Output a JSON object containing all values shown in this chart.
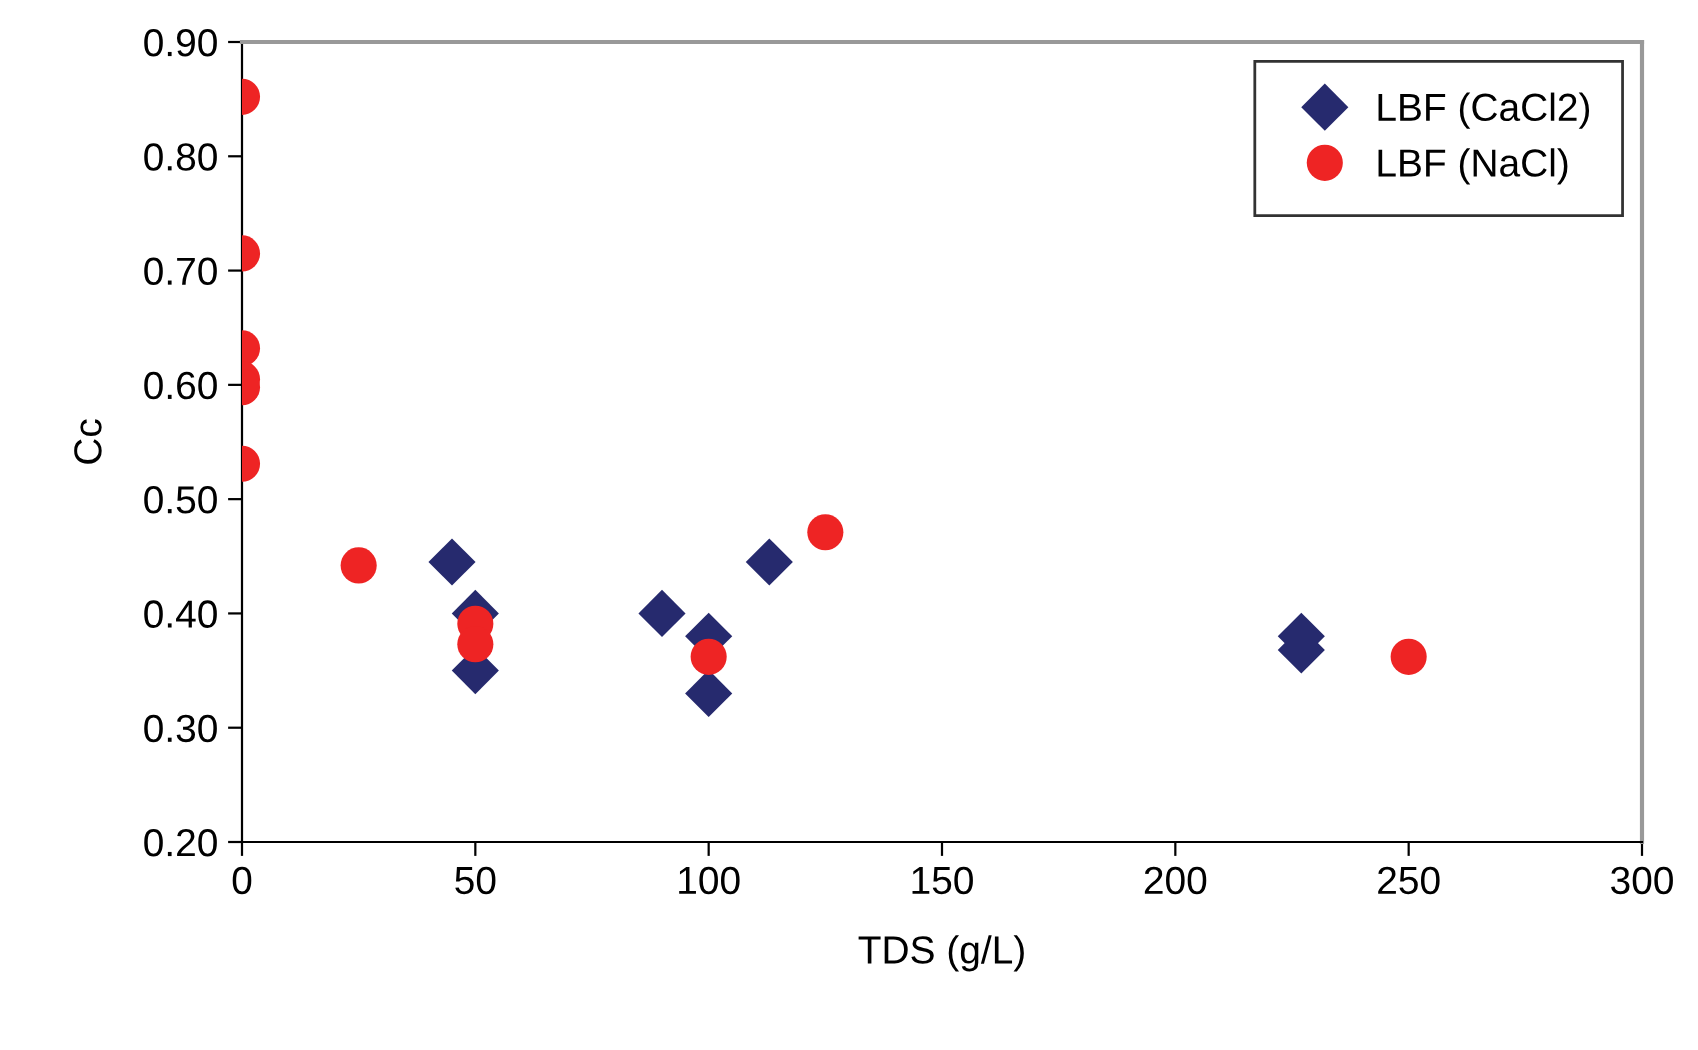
{
  "chart_data": {
    "type": "scatter",
    "xlabel": "TDS (g/L)",
    "ylabel": "Cc",
    "xlim": [
      0,
      300
    ],
    "xticks": [
      0,
      50,
      100,
      150,
      200,
      250,
      300
    ],
    "ylim": [
      0.2,
      0.9
    ],
    "yticks": [
      {
        "value": 0.2,
        "label": "0.20"
      },
      {
        "value": 0.3,
        "label": "0.30"
      },
      {
        "value": 0.4,
        "label": "0.40"
      },
      {
        "value": 0.5,
        "label": "0.50"
      },
      {
        "value": 0.6,
        "label": "0.60"
      },
      {
        "value": 0.7,
        "label": "0.70"
      },
      {
        "value": 0.8,
        "label": "0.80"
      },
      {
        "value": 0.9,
        "label": "0.90"
      }
    ],
    "grid": false,
    "legend": "top right",
    "series": [
      {
        "name": "LBF (CaCl2)",
        "color": "#262a6e",
        "marker": "diamond",
        "x": [
          45,
          50,
          50,
          90,
          100,
          100,
          113,
          227,
          227
        ],
        "values": [
          0.445,
          0.4,
          0.35,
          0.4,
          0.38,
          0.33,
          0.445,
          0.38,
          0.368
        ]
      },
      {
        "name": "LBF (NaCl)",
        "color": "#ee2424",
        "marker": "circle",
        "x": [
          0,
          0,
          0,
          0,
          0,
          0,
          25,
          50,
          50,
          100,
          125,
          250
        ],
        "values": [
          0.852,
          0.715,
          0.632,
          0.605,
          0.598,
          0.531,
          0.442,
          0.391,
          0.373,
          0.362,
          0.471,
          0.362
        ]
      }
    ]
  }
}
